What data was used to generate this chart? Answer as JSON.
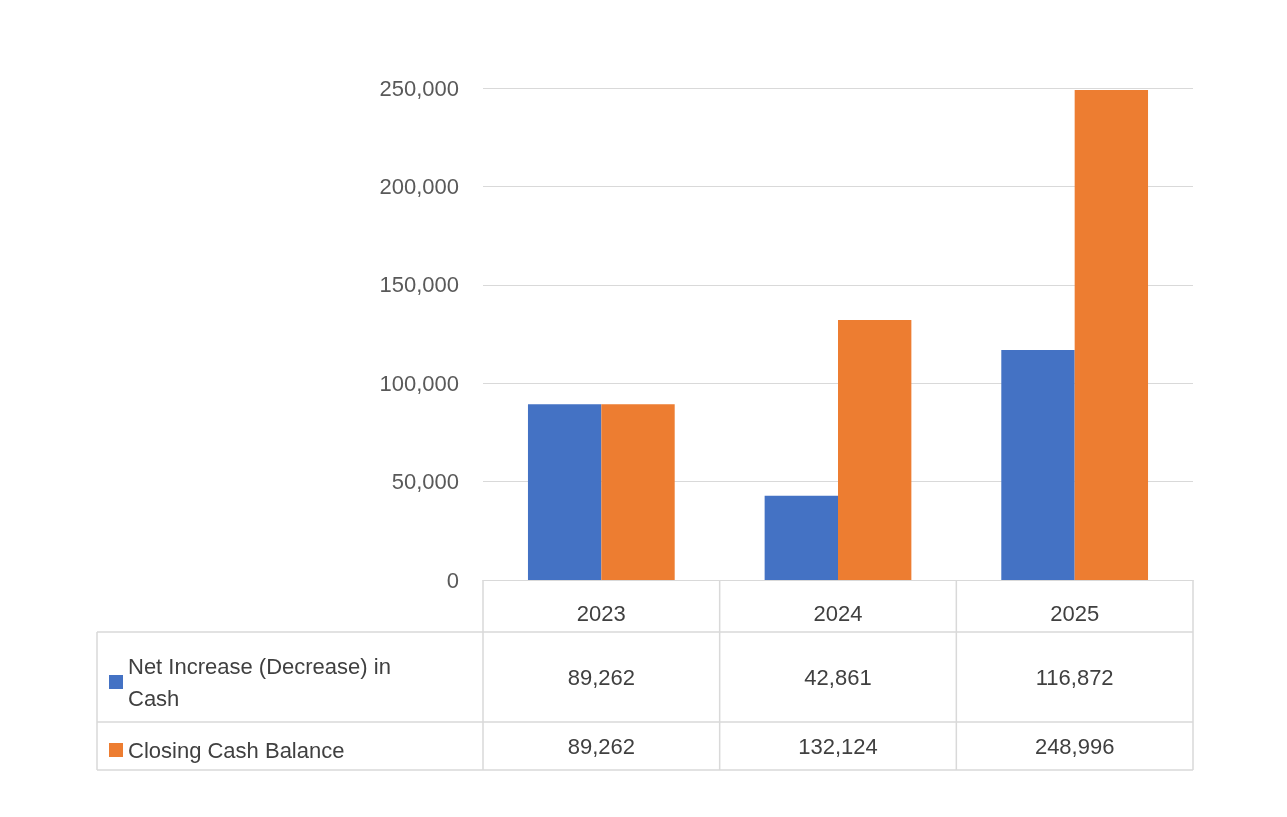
{
  "chart_data": {
    "type": "bar",
    "categories": [
      "2023",
      "2024",
      "2025"
    ],
    "series": [
      {
        "name": "Net Increase (Decrease) in Cash",
        "color": "#4472c4",
        "values": [
          89262,
          42861,
          116872
        ],
        "value_labels": [
          "89,262",
          "42,861",
          "116,872"
        ]
      },
      {
        "name": "Closing Cash Balance",
        "color": "#ed7d31",
        "values": [
          89262,
          132124,
          248996
        ],
        "value_labels": [
          "89,262",
          "132,124",
          "248,996"
        ]
      }
    ],
    "ylim": [
      0,
      250000
    ],
    "yticks": [
      0,
      {
        "value": 50000,
        "label": "50,000"
      },
      {
        "value": 100000,
        "label": "100,000"
      },
      {
        "value": 150000,
        "label": "150,000"
      },
      {
        "value": 200000,
        "label": "200,000"
      },
      {
        "value": 250000,
        "label": "250,000"
      }
    ],
    "grid": "y",
    "legend": "bottom left"
  }
}
